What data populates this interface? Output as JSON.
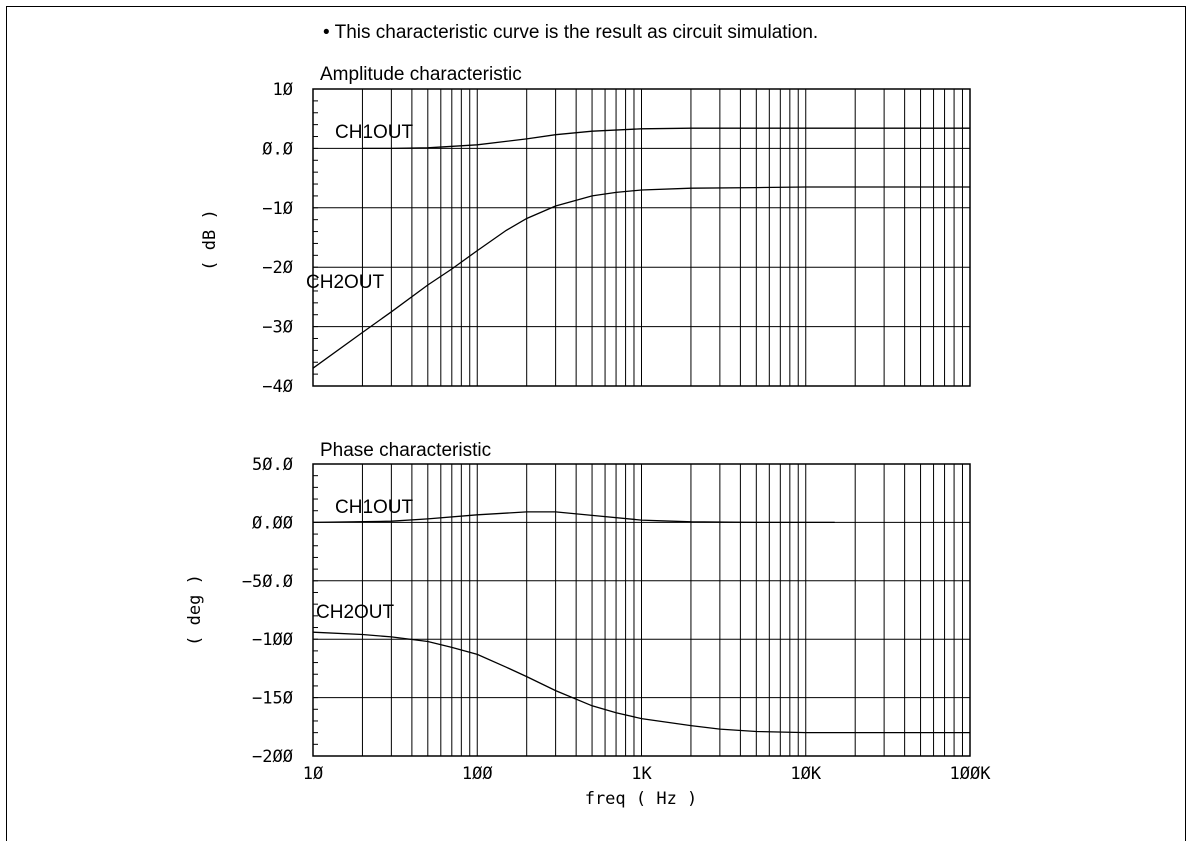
{
  "note": "• This characteristic curve is the result as circuit simulation.",
  "xlabel": "freq ( Hz )",
  "xticks": [
    "10",
    "100",
    "1K",
    "10K",
    "100K"
  ],
  "chart_data": [
    {
      "type": "line",
      "title": "Amplitude characteristic",
      "ylabel": "( dB )",
      "x_scale": "log",
      "xlim": [
        10,
        100000
      ],
      "ylim": [
        -40,
        10
      ],
      "yticks": [
        10,
        0,
        -10,
        -20,
        -30,
        -40
      ],
      "ytick_labels": [
        "10",
        "0.0",
        "-10",
        "-20",
        "-30",
        "-40"
      ],
      "grid": true,
      "series": [
        {
          "name": "CH1OUT",
          "x": [
            20,
            30,
            50,
            100,
            200,
            300,
            500,
            1000,
            2000,
            5000,
            10000,
            50000,
            100000
          ],
          "y": [
            0,
            0,
            0.1,
            0.6,
            1.6,
            2.3,
            2.9,
            3.3,
            3.4,
            3.4,
            3.4,
            3.4,
            3.4
          ]
        },
        {
          "name": "CH2OUT",
          "x": [
            10,
            20,
            30,
            50,
            70,
            100,
            150,
            200,
            300,
            500,
            700,
            1000,
            2000,
            5000,
            10000,
            50000,
            100000
          ],
          "y": [
            -37,
            -31,
            -27.5,
            -23,
            -20.3,
            -17.2,
            -13.8,
            -11.8,
            -9.7,
            -8,
            -7.4,
            -7,
            -6.7,
            -6.6,
            -6.5,
            -6.5,
            -6.5
          ]
        }
      ]
    },
    {
      "type": "line",
      "title": "Phase characteristic",
      "ylabel": "( deg )",
      "x_scale": "log",
      "xlim": [
        10,
        100000
      ],
      "ylim": [
        -200,
        50
      ],
      "yticks": [
        50,
        0,
        -50,
        -100,
        -150,
        -200
      ],
      "ytick_labels": [
        "50.0",
        "0.00",
        "-50.0",
        "-100",
        "-150",
        "-200"
      ],
      "grid": true,
      "series": [
        {
          "name": "CH1OUT",
          "x": [
            10,
            30,
            50,
            100,
            200,
            300,
            500,
            1000,
            2000,
            5000,
            10000,
            15000
          ],
          "y": [
            0,
            1,
            3,
            6.5,
            9,
            9,
            6,
            2,
            0.5,
            0,
            0,
            0
          ]
        },
        {
          "name": "CH2OUT",
          "x": [
            10,
            20,
            30,
            50,
            70,
            100,
            150,
            200,
            300,
            500,
            700,
            1000,
            2000,
            3000,
            5000,
            10000,
            50000,
            100000
          ],
          "y": [
            -94,
            -96,
            -98,
            -102,
            -107,
            -113,
            -124,
            -132,
            -144,
            -157,
            -163,
            -168,
            -174,
            -177,
            -179,
            -180,
            -180,
            -180
          ]
        }
      ]
    }
  ]
}
